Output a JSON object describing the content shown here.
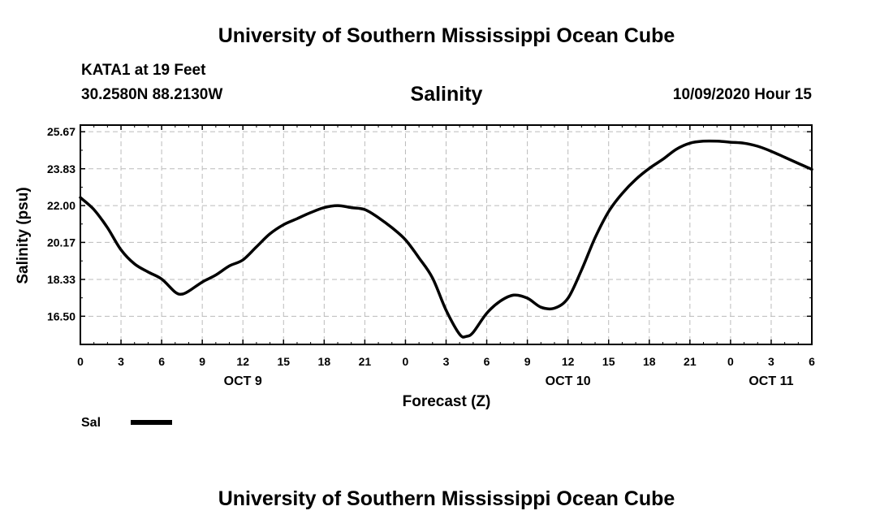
{
  "header": {
    "org_title": "University of Southern Mississippi Ocean Cube",
    "station": "KATA1 at 19 Feet",
    "coords": "30.2580N 88.2130W",
    "datetime": "10/09/2020 Hour 15"
  },
  "footer": {
    "org_title": "University of Southern Mississippi Ocean Cube"
  },
  "legend": {
    "label": "Sal"
  },
  "colors": {
    "series": "#000000",
    "grid": "#bbbbbb"
  },
  "chart_data": {
    "type": "line",
    "title": "Salinity",
    "xlabel": "Forecast (Z)",
    "ylabel": "Salinity (psu)",
    "grid": true,
    "legend": "bottom-left",
    "xlim": [
      0,
      54
    ],
    "ylim": [
      15.1,
      26.0
    ],
    "y_ticks": [
      16.5,
      18.33,
      20.17,
      22.0,
      23.83,
      25.67
    ],
    "y_tick_labels": [
      "16.50",
      "18.33",
      "20.17",
      "22.00",
      "23.83",
      "25.67"
    ],
    "x_ticks": [
      0,
      3,
      6,
      9,
      12,
      15,
      18,
      21,
      24,
      27,
      30,
      33,
      36,
      39,
      42,
      45,
      48,
      51,
      54
    ],
    "x_tick_labels": [
      "0",
      "3",
      "6",
      "9",
      "12",
      "15",
      "18",
      "21",
      "0",
      "3",
      "6",
      "9",
      "12",
      "15",
      "18",
      "21",
      "0",
      "3",
      "6"
    ],
    "date_labels": [
      {
        "label": "OCT 9",
        "x": 12
      },
      {
        "label": "OCT 10",
        "x": 36
      },
      {
        "label": "OCT 11",
        "x": 51
      }
    ],
    "series": [
      {
        "name": "Sal",
        "x": [
          0,
          1,
          2,
          3,
          4,
          5,
          6,
          7,
          7.5,
          8,
          9,
          10,
          11,
          12,
          13,
          14,
          15,
          16,
          17,
          18,
          19,
          20,
          21,
          22,
          23,
          24,
          25,
          26,
          27,
          28,
          28.5,
          29,
          30,
          31,
          32,
          33,
          34,
          35,
          36,
          37,
          38,
          39,
          40,
          41,
          42,
          43,
          44,
          45,
          46,
          47,
          48,
          49,
          50,
          51,
          52,
          53,
          54
        ],
        "y": [
          22.4,
          21.8,
          20.9,
          19.8,
          19.1,
          18.7,
          18.35,
          17.7,
          17.6,
          17.75,
          18.2,
          18.55,
          19.0,
          19.3,
          19.95,
          20.6,
          21.05,
          21.35,
          21.65,
          21.9,
          22.0,
          21.9,
          21.8,
          21.4,
          20.9,
          20.3,
          19.4,
          18.4,
          16.8,
          15.6,
          15.5,
          15.7,
          16.65,
          17.25,
          17.55,
          17.4,
          16.95,
          16.9,
          17.4,
          18.8,
          20.4,
          21.7,
          22.6,
          23.3,
          23.85,
          24.3,
          24.8,
          25.1,
          25.2,
          25.2,
          25.15,
          25.1,
          24.95,
          24.7,
          24.4,
          24.1,
          23.8
        ]
      }
    ]
  }
}
